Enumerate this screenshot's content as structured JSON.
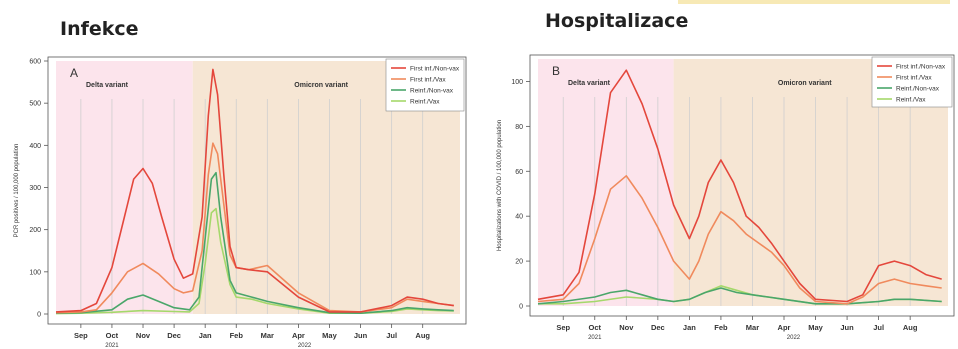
{
  "titles": {
    "left": "Infekce",
    "right": "Hospitalizace"
  },
  "colors": {
    "first_non_vax": "#e4473c",
    "first_vax": "#f08a5d",
    "reinf_non_vax": "#4aa66a",
    "reinf_vax": "#a5d86b",
    "delta_band": "#fce4ec",
    "omicron_band": "#f6e6d4",
    "grid": "#cfcfcf"
  },
  "chart_data": [
    {
      "type": "line",
      "panel_label": "A",
      "title": "Infekce",
      "ylabel": "PCR positives / 100,000 population",
      "xlabel": "",
      "ylim": [
        0,
        600
      ],
      "yticks": [
        0,
        100,
        200,
        300,
        400,
        500,
        600
      ],
      "xlim": [
        0,
        12.2
      ],
      "xticks": [
        {
          "label": "Sep",
          "x": 0
        },
        {
          "label": "Oct",
          "x": 1
        },
        {
          "label": "Nov",
          "x": 2
        },
        {
          "label": "Dec",
          "x": 3
        },
        {
          "label": "Jan",
          "x": 4
        },
        {
          "label": "Feb",
          "x": 5
        },
        {
          "label": "Mar",
          "x": 6
        },
        {
          "label": "Apr",
          "x": 7
        },
        {
          "label": "May",
          "x": 8
        },
        {
          "label": "Jun",
          "x": 9
        },
        {
          "label": "Jul",
          "x": 10
        },
        {
          "label": "Aug",
          "x": 11
        }
      ],
      "year_labels": [
        {
          "label": "2021",
          "x": 1.0
        },
        {
          "label": "2022",
          "x": 7.2
        }
      ],
      "bands": [
        {
          "label": "Delta variant",
          "from": -0.8,
          "to": 3.6
        },
        {
          "label": "Omicron variant",
          "from": 3.6,
          "to": 12.2
        }
      ],
      "vlines": [
        0,
        1,
        2,
        3,
        4,
        5,
        6,
        7,
        8,
        9,
        10,
        11
      ],
      "legend": "top-right",
      "series": [
        {
          "name": "First inf./Non-vax",
          "color_key": "first_non_vax",
          "x": [
            -0.8,
            0,
            0.5,
            1,
            1.4,
            1.7,
            2,
            2.3,
            2.6,
            3,
            3.3,
            3.6,
            3.9,
            4.1,
            4.25,
            4.4,
            4.6,
            4.8,
            5,
            5.4,
            6,
            7,
            8,
            9,
            10,
            10.5,
            11,
            11.5,
            12
          ],
          "y": [
            5,
            8,
            25,
            110,
            230,
            320,
            345,
            310,
            230,
            130,
            85,
            95,
            230,
            470,
            580,
            520,
            330,
            160,
            110,
            105,
            100,
            40,
            5,
            5,
            20,
            40,
            35,
            25,
            20
          ]
        },
        {
          "name": "First inf./Vax",
          "color_key": "first_vax",
          "x": [
            -0.8,
            0,
            0.5,
            1,
            1.5,
            2,
            2.5,
            3,
            3.3,
            3.6,
            3.9,
            4.1,
            4.25,
            4.4,
            4.6,
            4.8,
            5,
            5.4,
            6,
            7,
            8,
            9,
            10,
            10.5,
            11,
            11.5,
            12
          ],
          "y": [
            3,
            5,
            10,
            50,
            100,
            120,
            95,
            60,
            50,
            55,
            150,
            330,
            405,
            380,
            260,
            140,
            110,
            105,
            115,
            50,
            8,
            5,
            15,
            35,
            30,
            25,
            20
          ]
        },
        {
          "name": "Reinf./Non-vax",
          "color_key": "reinf_non_vax",
          "x": [
            -0.8,
            0,
            1,
            1.5,
            2,
            2.5,
            3,
            3.5,
            3.8,
            4,
            4.2,
            4.35,
            4.5,
            4.8,
            5,
            5.5,
            6,
            7,
            8,
            9,
            10,
            10.5,
            11,
            11.5,
            12
          ],
          "y": [
            2,
            3,
            10,
            35,
            45,
            30,
            15,
            10,
            40,
            180,
            320,
            335,
            230,
            80,
            50,
            40,
            30,
            15,
            3,
            2,
            8,
            15,
            12,
            10,
            8
          ]
        },
        {
          "name": "Reinf./Vax",
          "color_key": "reinf_vax",
          "x": [
            -0.8,
            0,
            1,
            2,
            3,
            3.5,
            3.8,
            4,
            4.2,
            4.35,
            4.5,
            4.8,
            5,
            5.5,
            6,
            7,
            8,
            9,
            10,
            10.5,
            11,
            11.5,
            12
          ],
          "y": [
            1,
            2,
            4,
            8,
            6,
            5,
            25,
            120,
            240,
            250,
            170,
            70,
            40,
            35,
            25,
            12,
            2,
            2,
            6,
            12,
            10,
            8,
            7
          ]
        }
      ]
    },
    {
      "type": "line",
      "panel_label": "B",
      "title": "Hospitalizace",
      "ylabel": "Hospitalizations with COVID / 100,000 population",
      "xlabel": "",
      "ylim": [
        0,
        110
      ],
      "yticks": [
        0,
        20,
        40,
        60,
        80,
        100
      ],
      "xlim": [
        0,
        12.2
      ],
      "xticks": [
        {
          "label": "Sep",
          "x": 0
        },
        {
          "label": "Oct",
          "x": 1
        },
        {
          "label": "Nov",
          "x": 2
        },
        {
          "label": "Dec",
          "x": 3
        },
        {
          "label": "Jan",
          "x": 4
        },
        {
          "label": "Feb",
          "x": 5
        },
        {
          "label": "Mar",
          "x": 6
        },
        {
          "label": "Apr",
          "x": 7
        },
        {
          "label": "May",
          "x": 8
        },
        {
          "label": "Jun",
          "x": 9
        },
        {
          "label": "Jul",
          "x": 10
        },
        {
          "label": "Aug",
          "x": 11
        }
      ],
      "year_labels": [
        {
          "label": "2021",
          "x": 1.0
        },
        {
          "label": "2022",
          "x": 7.3
        }
      ],
      "bands": [
        {
          "label": "Delta variant",
          "from": -0.8,
          "to": 3.5
        },
        {
          "label": "Omicron variant",
          "from": 3.5,
          "to": 12.2
        }
      ],
      "vlines": [
        0,
        1,
        2,
        3,
        4,
        5,
        6,
        7,
        8,
        9,
        10,
        11
      ],
      "legend": "top-right",
      "series": [
        {
          "name": "First inf./Non-vax",
          "color_key": "first_non_vax",
          "x": [
            -0.8,
            0,
            0.5,
            1,
            1.5,
            2,
            2.5,
            3,
            3.5,
            4,
            4.3,
            4.6,
            5,
            5.4,
            5.8,
            6.2,
            6.6,
            7,
            7.5,
            8,
            9,
            9.5,
            10,
            10.5,
            11,
            11.5,
            12
          ],
          "y": [
            3,
            5,
            15,
            50,
            95,
            105,
            90,
            70,
            45,
            30,
            40,
            55,
            65,
            55,
            40,
            35,
            28,
            20,
            10,
            3,
            2,
            5,
            18,
            20,
            18,
            14,
            12
          ]
        },
        {
          "name": "First inf./Vax",
          "color_key": "first_vax",
          "x": [
            -0.8,
            0,
            0.5,
            1,
            1.5,
            2,
            2.5,
            3,
            3.5,
            4,
            4.3,
            4.6,
            5,
            5.4,
            5.8,
            6.2,
            6.6,
            7,
            7.5,
            8,
            9,
            9.5,
            10,
            10.5,
            11,
            11.5,
            12
          ],
          "y": [
            2,
            3,
            10,
            30,
            52,
            58,
            48,
            35,
            20,
            12,
            20,
            32,
            42,
            38,
            32,
            28,
            24,
            18,
            8,
            2,
            1,
            4,
            10,
            12,
            10,
            9,
            8
          ]
        },
        {
          "name": "Reinf./Non-vax",
          "color_key": "reinf_non_vax",
          "x": [
            -0.8,
            0,
            1,
            1.5,
            2,
            2.5,
            3,
            3.5,
            4,
            4.5,
            5,
            5.5,
            6,
            6.5,
            7,
            8,
            9,
            10,
            10.5,
            11,
            12
          ],
          "y": [
            1,
            2,
            4,
            6,
            7,
            5,
            3,
            2,
            3,
            6,
            8,
            6,
            5,
            4,
            3,
            1,
            1,
            2,
            3,
            3,
            2
          ]
        },
        {
          "name": "Reinf./Vax",
          "color_key": "reinf_vax",
          "x": [
            -0.8,
            0,
            1,
            2,
            3,
            3.5,
            4,
            4.5,
            5,
            5.5,
            6,
            7,
            8,
            9,
            10,
            10.5,
            11,
            12
          ],
          "y": [
            1,
            1,
            2,
            4,
            3,
            2,
            3,
            6,
            9,
            7,
            5,
            3,
            1,
            1,
            2,
            3,
            3,
            2
          ]
        }
      ]
    }
  ]
}
